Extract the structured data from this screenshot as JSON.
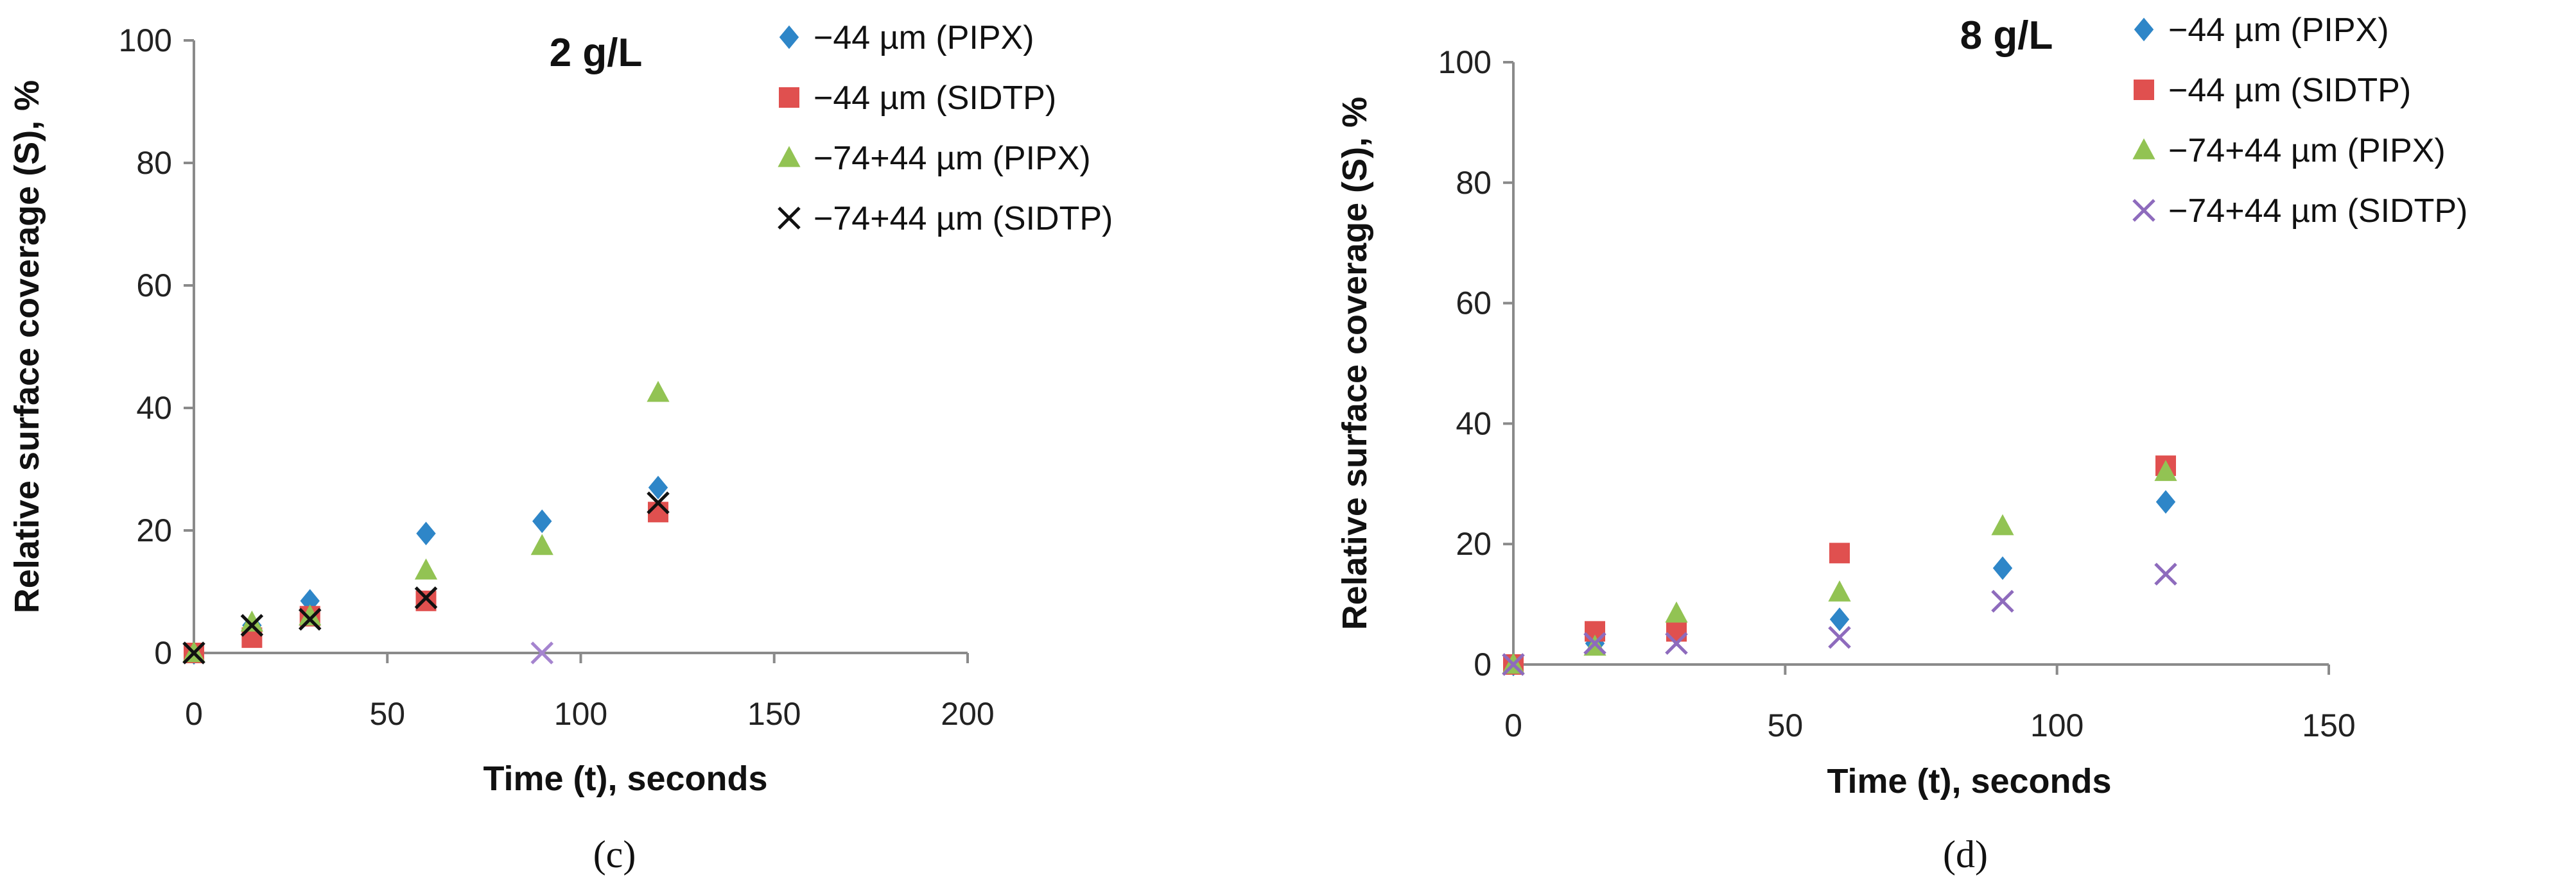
{
  "chart_data": [
    {
      "type": "scatter",
      "title": "2 g/L",
      "xlabel": "Time (t), seconds",
      "ylabel": "Relative surface coverage (S), %",
      "xlim": [
        0,
        200
      ],
      "ylim": [
        0,
        100
      ],
      "xticks": [
        "0",
        "50",
        "100",
        "150",
        "200"
      ],
      "yticks": [
        "0",
        "20",
        "40",
        "60",
        "80",
        "100"
      ],
      "grid": false,
      "legend_position": "top-right",
      "caption": "(c)",
      "series": [
        {
          "name": "−44 µm (PIPX)",
          "marker": "diamond",
          "color": "#2e86c8",
          "points": [
            [
              0,
              0
            ],
            [
              15,
              4.5
            ],
            [
              30,
              8.5
            ],
            [
              60,
              19.5
            ],
            [
              90,
              21.5
            ],
            [
              120,
              27
            ]
          ]
        },
        {
          "name": "−44 µm (SIDTP)",
          "marker": "square",
          "color": "#e0504f",
          "points": [
            [
              0,
              0
            ],
            [
              15,
              2.5
            ],
            [
              30,
              6
            ],
            [
              60,
              8.5
            ],
            [
              120,
              23
            ]
          ]
        },
        {
          "name": "−74+44 µm (PIPX)",
          "marker": "triangle",
          "color": "#92c353",
          "points": [
            [
              0,
              0
            ],
            [
              15,
              5
            ],
            [
              30,
              6
            ],
            [
              60,
              13.5
            ],
            [
              90,
              17.5
            ],
            [
              120,
              42.5
            ]
          ]
        },
        {
          "name": "−74+44 µm (SIDTP)",
          "marker": "x",
          "color": "#111111",
          "points": [
            [
              0,
              0
            ],
            [
              15,
              4.5
            ],
            [
              30,
              5.5
            ],
            [
              60,
              9
            ],
            [
              120,
              24.5
            ]
          ]
        },
        {
          "name": "",
          "marker": "x",
          "color": "#a584cf",
          "points": [
            [
              90,
              0
            ]
          ]
        }
      ]
    },
    {
      "type": "scatter",
      "title": "8 g/L",
      "xlabel": "Time (t), seconds",
      "ylabel": "Relative surface coverage (S), %",
      "xlim": [
        0,
        150
      ],
      "ylim": [
        0,
        100
      ],
      "xticks": [
        "0",
        "50",
        "100",
        "150"
      ],
      "yticks": [
        "0",
        "20",
        "40",
        "60",
        "80",
        "100"
      ],
      "grid": false,
      "legend_position": "top-right",
      "caption": "(d)",
      "series": [
        {
          "name": "−44 µm (PIPX)",
          "marker": "diamond",
          "color": "#2e86c8",
          "points": [
            [
              0,
              0
            ],
            [
              15,
              3.5
            ],
            [
              30,
              5
            ],
            [
              60,
              7.5
            ],
            [
              90,
              16
            ],
            [
              120,
              27
            ]
          ]
        },
        {
          "name": "−44 µm (SIDTP)",
          "marker": "square",
          "color": "#e0504f",
          "points": [
            [
              0,
              0
            ],
            [
              15,
              5.5
            ],
            [
              30,
              5.5
            ],
            [
              60,
              18.5
            ],
            [
              120,
              33
            ]
          ]
        },
        {
          "name": "−74+44 µm (PIPX)",
          "marker": "triangle",
          "color": "#92c353",
          "points": [
            [
              0,
              0
            ],
            [
              15,
              3
            ],
            [
              30,
              8.5
            ],
            [
              60,
              12
            ],
            [
              90,
              23
            ],
            [
              120,
              32
            ]
          ]
        },
        {
          "name": "−74+44 µm (SIDTP)",
          "marker": "x",
          "color": "#8e6bbd",
          "points": [
            [
              0,
              0
            ],
            [
              15,
              3.5
            ],
            [
              30,
              3.5
            ],
            [
              60,
              4.5
            ],
            [
              90,
              10.5
            ],
            [
              120,
              15
            ]
          ]
        }
      ]
    }
  ]
}
